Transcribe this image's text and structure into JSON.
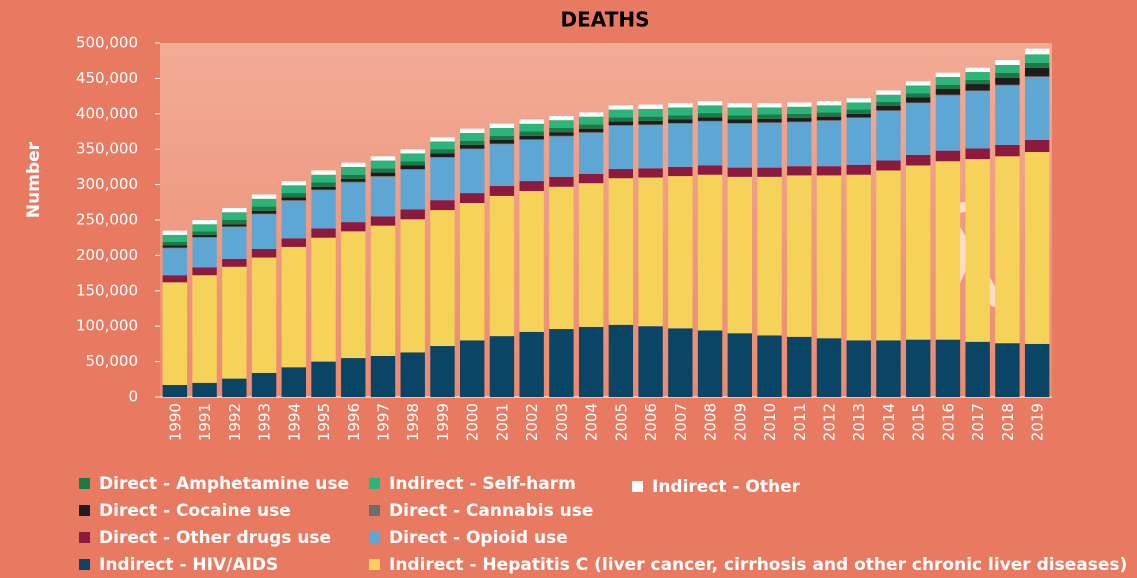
{
  "chart_data": {
    "type": "bar",
    "stacked": true,
    "title": "DEATHS",
    "y_label": "Number",
    "categories": [
      "1990",
      "1991",
      "1992",
      "1993",
      "1994",
      "1995",
      "1996",
      "1997",
      "1998",
      "1999",
      "2000",
      "2001",
      "2002",
      "2003",
      "2004",
      "2005",
      "2006",
      "2007",
      "2008",
      "2009",
      "2010",
      "2011",
      "2012",
      "2013",
      "2014",
      "2015",
      "2016",
      "2017",
      "2018",
      "2019"
    ],
    "ylim": [
      0,
      500000
    ],
    "yticks": [
      0,
      {
        "value": 50000,
        "label": "50,000"
      },
      {
        "value": 100000,
        "label": "100,000"
      },
      {
        "value": 150000,
        "label": "150,000"
      },
      {
        "value": 200000,
        "label": "200,000"
      },
      {
        "value": 250000,
        "label": "250,000"
      },
      {
        "value": 300000,
        "label": "300,000"
      },
      {
        "value": 350000,
        "label": "350,000"
      },
      {
        "value": 400000,
        "label": "400,000"
      },
      {
        "value": 450000,
        "label": "450,000"
      },
      {
        "value": 500000,
        "label": "500,000"
      }
    ],
    "series": [
      {
        "name": "Indirect - HIV/AIDS",
        "color": "#0b4566",
        "values": [
          17000,
          20000,
          26000,
          34000,
          42000,
          50000,
          55000,
          58000,
          63000,
          72000,
          80000,
          86000,
          92000,
          96000,
          99000,
          102000,
          100000,
          97000,
          94000,
          90000,
          87000,
          85000,
          83000,
          80000,
          80000,
          81000,
          81000,
          78000,
          76000,
          75000
        ]
      },
      {
        "name": "Indirect - Hepatitis C (liver cancer, cirrhosis and other chronic liver diseases)",
        "color": "#f5d35a",
        "values": [
          145000,
          152000,
          158000,
          163000,
          170000,
          175000,
          179000,
          184000,
          188000,
          192000,
          194000,
          198000,
          199000,
          201000,
          203000,
          207000,
          210000,
          215000,
          220000,
          221000,
          224000,
          228000,
          230000,
          234000,
          240000,
          246000,
          252000,
          258000,
          264000,
          271000
        ]
      },
      {
        "name": "Direct - Other drugs use",
        "color": "#8c1a3e",
        "values": [
          10000,
          11000,
          11000,
          12000,
          12000,
          13000,
          13000,
          13000,
          14000,
          14000,
          14000,
          14000,
          14000,
          14000,
          13000,
          13000,
          13000,
          13000,
          13000,
          13000,
          13000,
          13000,
          13000,
          14000,
          14000,
          15000,
          15000,
          15000,
          16000,
          17000
        ]
      },
      {
        "name": "Direct - Opioid use",
        "color": "#5ea7d4",
        "values": [
          38000,
          42000,
          45000,
          49000,
          53000,
          54000,
          56000,
          56000,
          56000,
          60000,
          62000,
          59000,
          58000,
          57000,
          58000,
          61000,
          61000,
          61000,
          62000,
          62000,
          63000,
          62000,
          64000,
          66000,
          70000,
          73000,
          78000,
          81000,
          84000,
          89000
        ]
      },
      {
        "name": "Direct - Cannabis use",
        "color": "#6d6d6d",
        "values": [
          1000,
          1000,
          1000,
          1000,
          1000,
          1000,
          1000,
          1000,
          1000,
          1000,
          1000,
          1000,
          1000,
          1000,
          1000,
          1000,
          1000,
          1000,
          1000,
          1000,
          1000,
          1000,
          1000,
          1000,
          1000,
          1000,
          1000,
          1000,
          1000,
          1000
        ]
      },
      {
        "name": "Direct - Cocaine use",
        "color": "#1e1e1e",
        "values": [
          3000,
          3000,
          3000,
          4000,
          4000,
          4000,
          4000,
          5000,
          5000,
          5000,
          5000,
          5000,
          5000,
          5000,
          5000,
          5000,
          5000,
          5000,
          5000,
          5000,
          5000,
          5000,
          5000,
          5000,
          6000,
          7000,
          8000,
          9000,
          10000,
          12000
        ]
      },
      {
        "name": "Direct - Amphetamine use",
        "color": "#1a7a48",
        "values": [
          5000,
          5000,
          6000,
          6000,
          6000,
          6000,
          6000,
          6000,
          6000,
          6000,
          6000,
          6000,
          6000,
          6000,
          6000,
          6000,
          6000,
          6000,
          6000,
          6000,
          6000,
          6000,
          6000,
          6000,
          6000,
          6000,
          6000,
          6000,
          7000,
          7000
        ]
      },
      {
        "name": "Indirect - Self-harm",
        "color": "#2bb57a",
        "values": [
          10000,
          10000,
          11000,
          11000,
          11000,
          11000,
          11000,
          11000,
          11000,
          11000,
          11000,
          11000,
          11000,
          11000,
          11000,
          11000,
          11000,
          11000,
          11000,
          11000,
          10000,
          10000,
          10000,
          10000,
          10000,
          11000,
          11000,
          11000,
          11000,
          12000
        ]
      },
      {
        "name": "Indirect - Other",
        "color": "#ffffff",
        "values": [
          6000,
          6000,
          6000,
          6000,
          6000,
          6000,
          6000,
          6000,
          6000,
          6000,
          6000,
          6000,
          6000,
          6000,
          6000,
          6000,
          6000,
          6000,
          6000,
          6000,
          6000,
          6000,
          6000,
          6000,
          6000,
          6000,
          6000,
          6000,
          7000,
          8000
        ]
      }
    ]
  }
}
